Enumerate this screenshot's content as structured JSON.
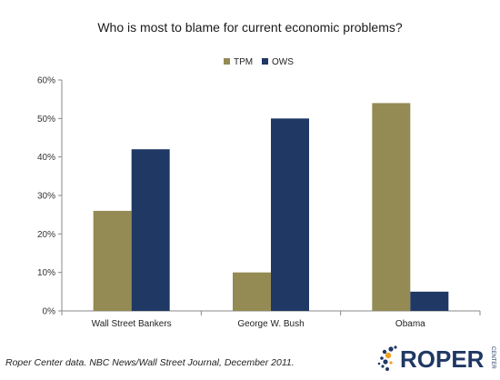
{
  "chart_data": {
    "type": "bar",
    "title": "Who is most to blame for current economic problems?",
    "categories": [
      "Wall Street Bankers",
      "George W. Bush",
      "Obama"
    ],
    "series": [
      {
        "name": "TPM",
        "values": [
          26,
          10,
          54
        ],
        "color": "#948a54"
      },
      {
        "name": "OWS",
        "values": [
          42,
          50,
          5
        ],
        "color": "#1f3864"
      }
    ],
    "ylim": [
      0,
      60
    ],
    "yticks": [
      "0%",
      "10%",
      "20%",
      "30%",
      "40%",
      "50%",
      "60%"
    ],
    "ytick_values": [
      0,
      10,
      20,
      30,
      40,
      50,
      60
    ],
    "grid": false,
    "legend_position": "top"
  },
  "source": "Roper Center data. NBC News/Wall Street Journal, December 2011.",
  "logo": {
    "text": "ROPER",
    "subtext": "CENTER",
    "color": "#1f3864",
    "accent": "#f0a020"
  }
}
